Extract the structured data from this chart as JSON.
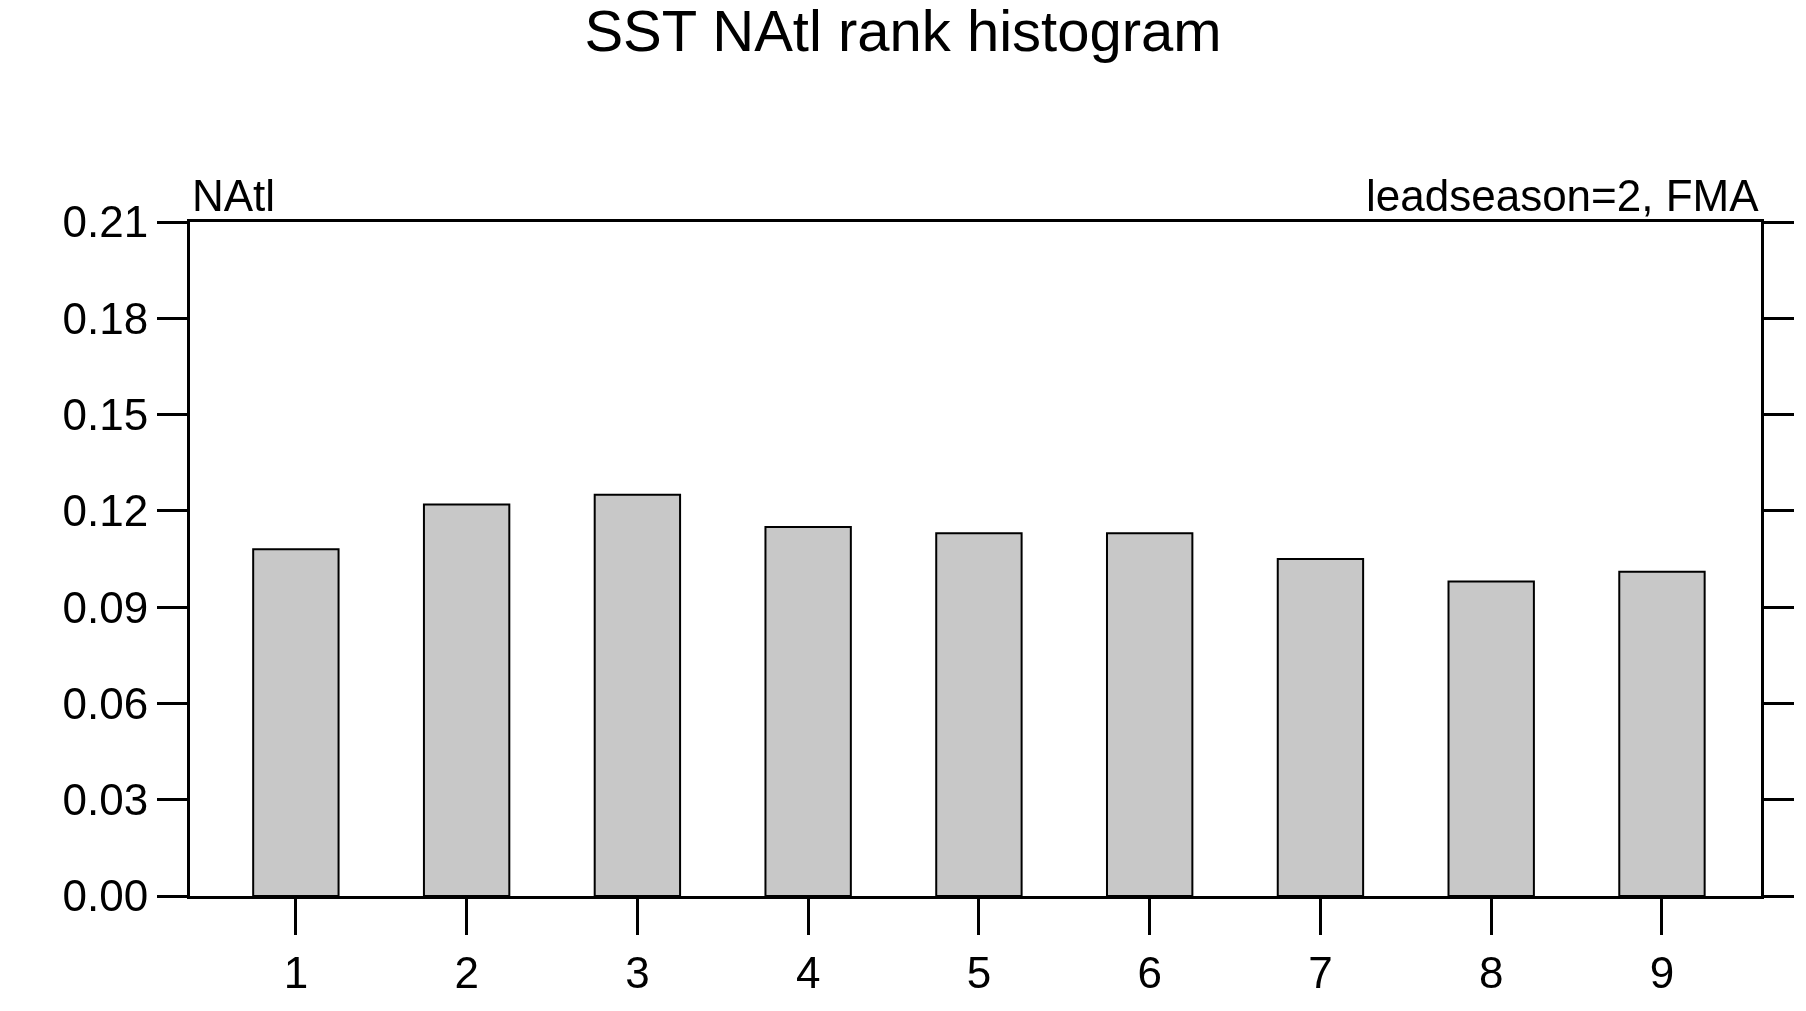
{
  "chart_data": {
    "type": "bar",
    "title": "SST NAtl rank histogram",
    "categories": [
      "1",
      "2",
      "3",
      "4",
      "5",
      "6",
      "7",
      "8",
      "9"
    ],
    "values": [
      0.108,
      0.122,
      0.125,
      0.115,
      0.113,
      0.113,
      0.105,
      0.098,
      0.101
    ],
    "color": "#c8c8c8",
    "ylim": [
      0,
      0.21
    ],
    "yticks": [
      {
        "value": 0,
        "label": "0.00"
      },
      0.03,
      0.06,
      0.09,
      0.12,
      0.15,
      0.18,
      0.21
    ],
    "annotations": [
      "NAtl",
      "leadseason=2, FMA"
    ],
    "grid": false
  }
}
